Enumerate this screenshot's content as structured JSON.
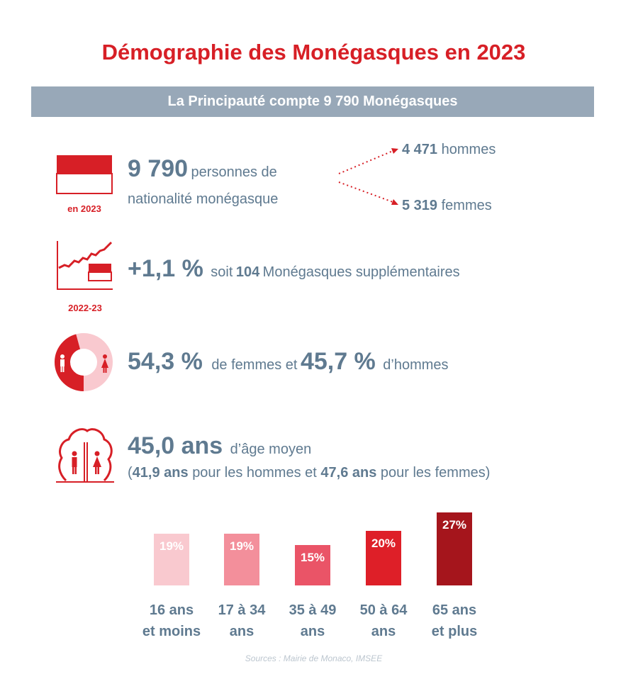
{
  "title": "Démographie des Monégasques en 2023",
  "banner": "La Principauté compte 9 790 Monégasques",
  "population": {
    "icon_caption": "en 2023",
    "total": "9 790",
    "total_text_1": "personnes de",
    "total_text_2": "nationalité monégasque",
    "men_value": "4 471",
    "men_label": "hommes",
    "women_value": "5 319",
    "women_label": "femmes"
  },
  "growth": {
    "icon_caption": "2022-23",
    "rate": "+1,1 %",
    "text_pre": "soit",
    "extra_count": "104",
    "text_post": "Monégasques supplémentaires"
  },
  "gender": {
    "women_pct": "54,3 %",
    "text_mid": "de femmes et",
    "men_pct": "45,7 %",
    "text_post": "d’hommes"
  },
  "age": {
    "mean": "45,0 ans",
    "mean_label": "d’âge moyen",
    "paren_open": "(",
    "men_age": "41,9 ans",
    "men_text": "pour les hommes et",
    "women_age": "47,6 ans",
    "women_text": "pour les femmes)"
  },
  "chart_data": {
    "type": "bar",
    "categories": [
      "16 ans et moins",
      "17 à 34 ans",
      "35 à 49 ans",
      "50 à 64 ans",
      "65 ans et plus"
    ],
    "category_lines": [
      [
        "16 ans",
        "et moins"
      ],
      [
        "17 à 34",
        "ans"
      ],
      [
        "35 à 49",
        "ans"
      ],
      [
        "50 à 64",
        "ans"
      ],
      [
        "65 ans",
        "et plus"
      ]
    ],
    "values": [
      19,
      19,
      15,
      20,
      27
    ],
    "labels": [
      "19%",
      "19%",
      "15%",
      "20%",
      "27%"
    ],
    "colors": [
      "#f9c9cf",
      "#f38f9b",
      "#ea5467",
      "#de1f28",
      "#a5151c"
    ],
    "unit": "%",
    "grid": false
  },
  "colors": {
    "accent_red": "#d71f26",
    "text_slate": "#5f7a90",
    "banner_bg": "#98a8b8"
  },
  "source": "Sources : Mairie de Monaco, IMSEE"
}
